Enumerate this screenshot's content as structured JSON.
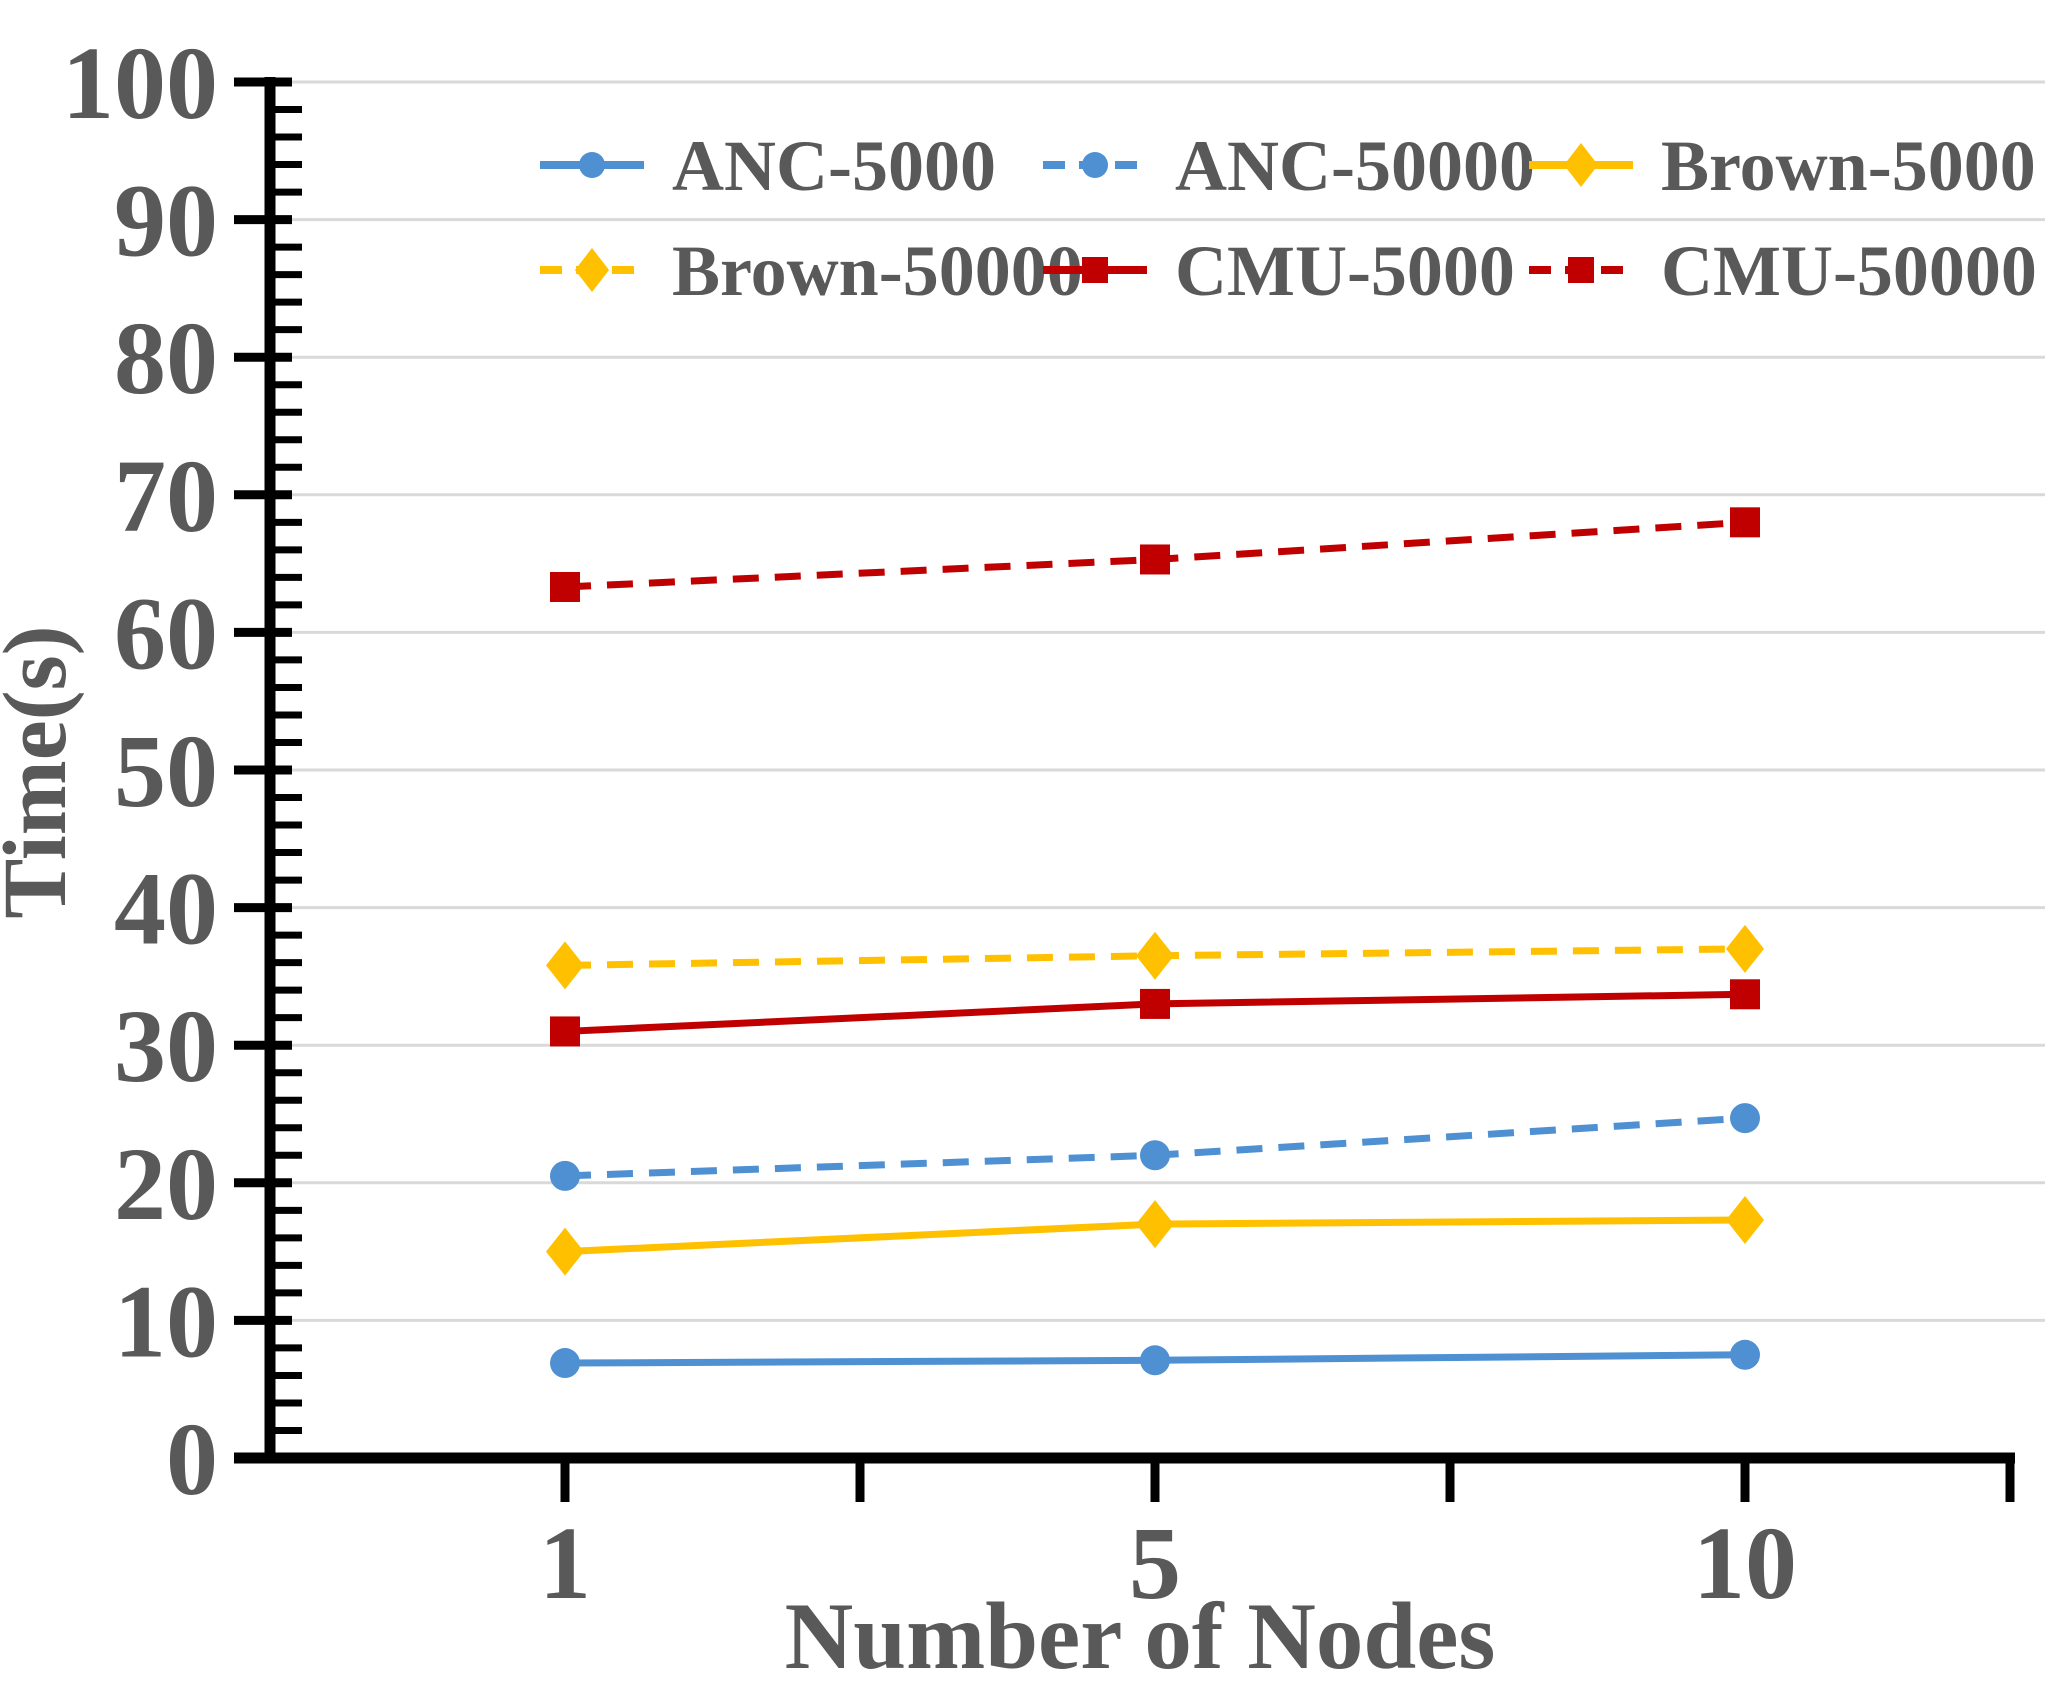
{
  "chart_data": {
    "type": "line",
    "title": "",
    "xlabel": "Number of Nodes",
    "ylabel": "Time(s)",
    "categories": [
      "1",
      "5",
      "10"
    ],
    "ylim": [
      0,
      100
    ],
    "y_major_tick_interval": 10,
    "y_minor_tick_interval": 2,
    "y_tick_labels": [
      "0",
      "10",
      "20",
      "30",
      "40",
      "50",
      "60",
      "70",
      "80",
      "90",
      "100"
    ],
    "grid": "horizontal-major",
    "legend_position": "top-inside-2rows-3cols",
    "series": [
      {
        "name": "ANC-5000",
        "color": "#4E90D2",
        "line_style": "solid",
        "marker": "circle",
        "values": [
          6.9,
          7.1,
          7.5
        ]
      },
      {
        "name": "ANC-50000",
        "color": "#4E90D2",
        "line_style": "dashed",
        "marker": "circle",
        "values": [
          20.5,
          22,
          24.7
        ]
      },
      {
        "name": "Brown-5000",
        "color": "#FFC000",
        "line_style": "solid",
        "marker": "diamond",
        "values": [
          15,
          17,
          17.3
        ]
      },
      {
        "name": "Brown-50000",
        "color": "#FFC000",
        "line_style": "dashed",
        "marker": "diamond",
        "values": [
          35.8,
          36.5,
          37
        ]
      },
      {
        "name": "CMU-5000",
        "color": "#C00000",
        "line_style": "solid",
        "marker": "square",
        "values": [
          31,
          33,
          33.7
        ]
      },
      {
        "name": "CMU-50000",
        "color": "#C00000",
        "line_style": "dashed",
        "marker": "square",
        "values": [
          63.3,
          65.3,
          68
        ]
      }
    ],
    "colors": {
      "text": "#595959",
      "gridline": "#D9D9D9",
      "axis": "#000000"
    }
  }
}
